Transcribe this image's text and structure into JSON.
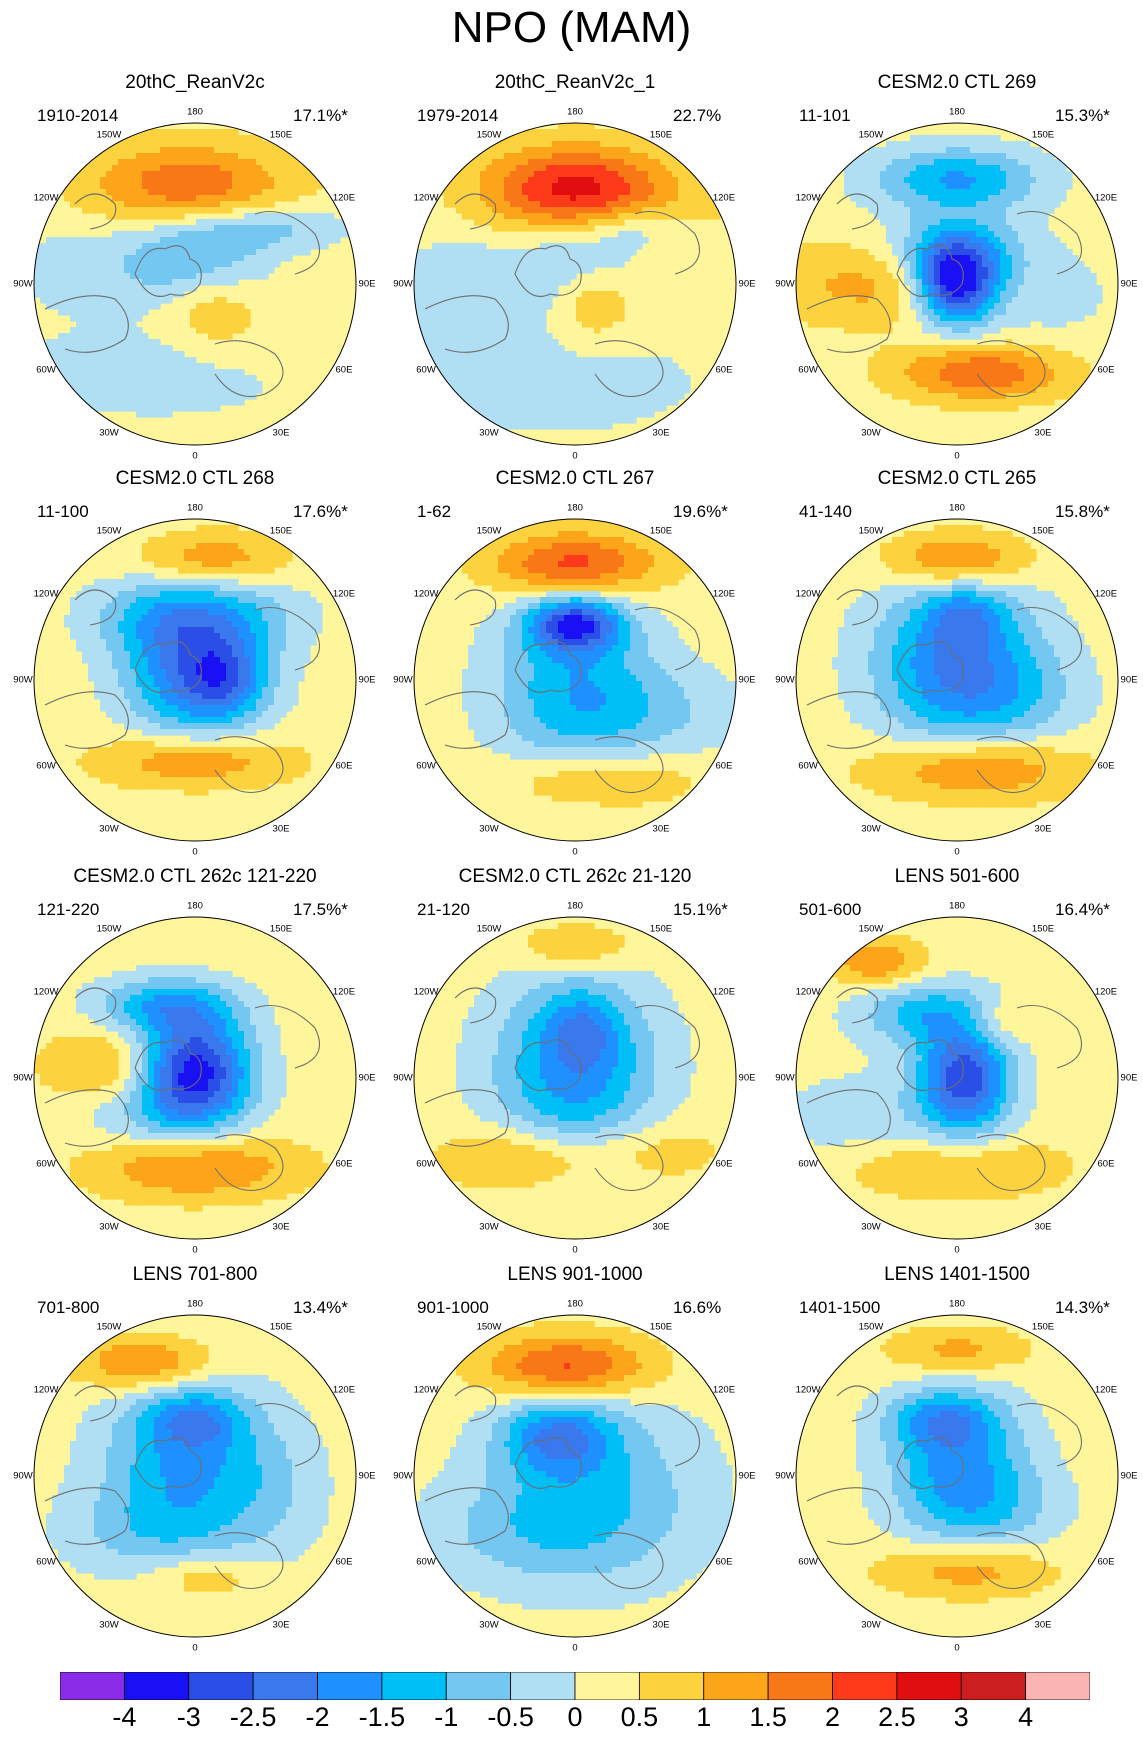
{
  "figure": {
    "title": "NPO (MAM)"
  },
  "panels": [
    {
      "title": "20thC_ReanV2c",
      "years": "1910-2014",
      "pct": "17.1%*",
      "blobs": [
        [
          0.05,
          -0.15,
          0.13,
          0.08,
          -1.3
        ],
        [
          0.4,
          -0.35,
          0.18,
          0.05,
          -1.0
        ],
        [
          -0.05,
          -0.62,
          0.22,
          0.09,
          1.6
        ],
        [
          0.1,
          0.05,
          0.09,
          0.12,
          0.7
        ],
        [
          -0.55,
          -0.1,
          0.22,
          0.1,
          -0.6
        ],
        [
          -0.2,
          0.55,
          0.35,
          0.1,
          -0.6
        ],
        [
          0.5,
          0.35,
          0.25,
          0.1,
          0.3
        ]
      ]
    },
    {
      "title": "20thC_ReanV2c_1",
      "years": "1979-2014",
      "pct": "22.7%",
      "blobs": [
        [
          0.0,
          -0.6,
          0.2,
          0.09,
          2.4
        ],
        [
          0.1,
          -0.15,
          0.12,
          0.07,
          -1.0
        ],
        [
          0.35,
          -0.35,
          0.12,
          0.05,
          -0.8
        ],
        [
          0.1,
          0.05,
          0.09,
          0.12,
          0.9
        ],
        [
          -0.55,
          0.0,
          0.25,
          0.1,
          -0.7
        ],
        [
          -0.2,
          0.6,
          0.35,
          0.12,
          -0.6
        ],
        [
          0.6,
          -0.2,
          0.2,
          0.15,
          0.3
        ]
      ]
    },
    {
      "title": "CESM2.0 CTL 269",
      "years": "11-101",
      "pct": "15.3%*",
      "blobs": [
        [
          0.0,
          -0.65,
          0.18,
          0.07,
          -1.8
        ],
        [
          0.0,
          0.0,
          0.09,
          0.09,
          -3.8
        ],
        [
          0.15,
          0.55,
          0.18,
          0.06,
          1.7
        ],
        [
          -0.4,
          0.0,
          0.28,
          0.09,
          1.0
        ],
        [
          0.0,
          -0.2,
          0.15,
          0.08,
          -1.5
        ],
        [
          0.55,
          0.05,
          0.15,
          0.1,
          -0.6
        ]
      ]
    },
    {
      "title": "CESM2.0 CTL 268",
      "years": "11-100",
      "pct": "17.6%*",
      "blobs": [
        [
          0.1,
          -0.75,
          0.15,
          0.06,
          1.3
        ],
        [
          0.0,
          -0.1,
          0.15,
          0.16,
          -2.6
        ],
        [
          0.2,
          0.0,
          0.08,
          0.08,
          -1.2
        ],
        [
          0.0,
          0.5,
          0.2,
          0.06,
          1.4
        ],
        [
          -0.3,
          -0.4,
          0.15,
          0.08,
          -0.8
        ],
        [
          0.35,
          -0.4,
          0.15,
          0.08,
          -0.6
        ]
      ]
    },
    {
      "title": "CESM2.0 CTL 267",
      "years": "1-62",
      "pct": "19.6%*",
      "blobs": [
        [
          0.0,
          -0.72,
          0.18,
          0.07,
          2.0
        ],
        [
          0.0,
          -0.35,
          0.1,
          0.06,
          -2.8
        ],
        [
          0.0,
          0.05,
          0.18,
          0.18,
          -1.6
        ],
        [
          0.15,
          0.62,
          0.2,
          0.06,
          1.0
        ],
        [
          0.55,
          0.2,
          0.2,
          0.1,
          -0.6
        ]
      ]
    },
    {
      "title": "CESM2.0 CTL 265",
      "years": "41-140",
      "pct": "15.8%*",
      "blobs": [
        [
          0.0,
          -0.75,
          0.15,
          0.06,
          1.6
        ],
        [
          0.0,
          -0.1,
          0.18,
          0.18,
          -2.3
        ],
        [
          0.05,
          -0.4,
          0.08,
          0.06,
          -1.0
        ],
        [
          0.1,
          0.55,
          0.22,
          0.07,
          1.5
        ],
        [
          0.4,
          0.1,
          0.15,
          0.1,
          -0.6
        ]
      ]
    },
    {
      "title": "CESM2.0 CTL 262c 121-220",
      "years": "121-220",
      "pct": "17.5%*",
      "blobs": [
        [
          0.0,
          -0.05,
          0.12,
          0.12,
          -3.5
        ],
        [
          -0.2,
          -0.45,
          0.15,
          0.06,
          -1.6
        ],
        [
          0.0,
          0.55,
          0.22,
          0.07,
          1.4
        ],
        [
          -0.55,
          -0.05,
          0.14,
          0.09,
          1.0
        ],
        [
          -0.3,
          0.2,
          0.18,
          0.08,
          -0.8
        ]
      ]
    },
    {
      "title": "CESM2.0 CTL 262c 21-120",
      "years": "21-120",
      "pct": "15.1%*",
      "blobs": [
        [
          0.0,
          -0.82,
          0.12,
          0.05,
          1.0
        ],
        [
          0.0,
          -0.05,
          0.18,
          0.2,
          -2.0
        ],
        [
          0.05,
          -0.3,
          0.08,
          0.08,
          -1.0
        ],
        [
          -0.3,
          0.5,
          0.18,
          0.07,
          1.1
        ],
        [
          0.5,
          0.45,
          0.15,
          0.07,
          0.6
        ]
      ]
    },
    {
      "title": "LENS 501-600",
      "years": "501-600",
      "pct": "16.4%*",
      "blobs": [
        [
          -0.5,
          -0.72,
          0.1,
          0.05,
          1.3
        ],
        [
          0.05,
          0.0,
          0.1,
          0.12,
          -3.0
        ],
        [
          -0.2,
          -0.4,
          0.15,
          0.07,
          -1.4
        ],
        [
          0.25,
          -0.35,
          0.08,
          0.05,
          0.8
        ],
        [
          -0.1,
          0.55,
          0.25,
          0.07,
          1.0
        ],
        [
          -0.55,
          0.3,
          0.22,
          0.12,
          -0.6
        ]
      ]
    },
    {
      "title": "LENS 701-800",
      "years": "701-800",
      "pct": "13.4%*",
      "blobs": [
        [
          -0.3,
          -0.7,
          0.15,
          0.06,
          1.5
        ],
        [
          -0.05,
          -0.1,
          0.18,
          0.18,
          -1.8
        ],
        [
          0.0,
          -0.35,
          0.1,
          0.06,
          -1.2
        ],
        [
          0.05,
          0.62,
          0.12,
          0.05,
          0.8
        ],
        [
          -0.3,
          0.35,
          0.2,
          0.1,
          -0.7
        ],
        [
          0.5,
          0.1,
          0.12,
          0.15,
          -0.5
        ]
      ]
    },
    {
      "title": "LENS 901-1000",
      "years": "901-1000",
      "pct": "16.6%",
      "blobs": [
        [
          -0.05,
          -0.68,
          0.18,
          0.07,
          2.0
        ],
        [
          -0.1,
          -0.25,
          0.12,
          0.08,
          -1.8
        ],
        [
          -0.05,
          0.05,
          0.2,
          0.2,
          -0.9
        ],
        [
          -0.3,
          0.35,
          0.25,
          0.12,
          -0.7
        ],
        [
          0.45,
          0.1,
          0.2,
          0.2,
          -0.5
        ]
      ]
    },
    {
      "title": "LENS 1401-1500",
      "years": "1401-1500",
      "pct": "14.3%*",
      "blobs": [
        [
          0.0,
          -0.78,
          0.15,
          0.05,
          1.0
        ],
        [
          0.0,
          -0.05,
          0.15,
          0.16,
          -1.9
        ],
        [
          0.05,
          0.58,
          0.18,
          0.06,
          1.2
        ],
        [
          -0.1,
          -0.35,
          0.12,
          0.06,
          -1.3
        ],
        [
          0.3,
          0.2,
          0.15,
          0.1,
          -0.6
        ]
      ]
    }
  ],
  "longitude_labels": [
    {
      "label": "180",
      "angle_deg": 90
    },
    {
      "label": "150E",
      "angle_deg": 60
    },
    {
      "label": "120E",
      "angle_deg": 30
    },
    {
      "label": "90E",
      "angle_deg": 0
    },
    {
      "label": "60E",
      "angle_deg": -30
    },
    {
      "label": "30E",
      "angle_deg": -60
    },
    {
      "label": "0",
      "angle_deg": -90
    },
    {
      "label": "30W",
      "angle_deg": -120
    },
    {
      "label": "60W",
      "angle_deg": -150
    },
    {
      "label": "90W",
      "angle_deg": 180
    },
    {
      "label": "120W",
      "angle_deg": 150
    },
    {
      "label": "150W",
      "angle_deg": 120
    }
  ],
  "colorbar": {
    "levels": [
      "-4",
      "-3",
      "-2.5",
      "-2",
      "-1.5",
      "-1",
      "-0.5",
      "0",
      "0.5",
      "1",
      "1.5",
      "2",
      "2.5",
      "3",
      "4"
    ],
    "colors": [
      "#8a2be8",
      "#1a10f4",
      "#2b4ee6",
      "#3a78ee",
      "#1e90ff",
      "#00bff7",
      "#74c7f0",
      "#b0def2",
      "#fff59a",
      "#fcd23f",
      "#fca51a",
      "#f87716",
      "#fd3b1b",
      "#e00e0e",
      "#cb1e1e",
      "#fbb4b4"
    ]
  },
  "chart_data": {
    "type": "map",
    "title": "NPO (MAM)",
    "projection": "north polar stereographic",
    "field": "seasonal NPO regression pattern (anomaly)",
    "contour_levels": [
      -4,
      -3,
      -2.5,
      -2,
      -1.5,
      -1,
      -0.5,
      0,
      0.5,
      1,
      1.5,
      2,
      2.5,
      3,
      4
    ],
    "panels": [
      "20thC_ReanV2c",
      "20thC_ReanV2c_1",
      "CESM2.0 CTL 269",
      "CESM2.0 CTL 268",
      "CESM2.0 CTL 267",
      "CESM2.0 CTL 265",
      "CESM2.0 CTL 262c 121-220",
      "CESM2.0 CTL 262c 21-120",
      "LENS 501-600",
      "LENS 701-800",
      "LENS 901-1000",
      "LENS 1401-1500"
    ]
  }
}
